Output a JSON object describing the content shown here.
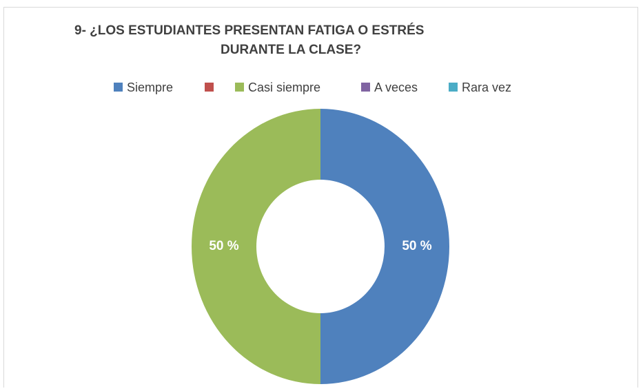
{
  "chart_data": {
    "type": "donut",
    "title": [
      "9- ¿LOS ESTUDIANTES PRESENTAN FATIGA O ESTRÉS",
      "DURANTE LA CLASE?"
    ],
    "categories": [
      "Siempre",
      null,
      "Casi siempre",
      "A veces",
      "Rara vez"
    ],
    "values": [
      50,
      0,
      50,
      0,
      0
    ],
    "value_labels": [
      "50 %",
      null,
      "50 %",
      null,
      null
    ],
    "colors": [
      "#4f81bd",
      "#c0504d",
      "#9bbb59",
      "#8064a2",
      "#4bacc6"
    ],
    "legend": "top"
  }
}
